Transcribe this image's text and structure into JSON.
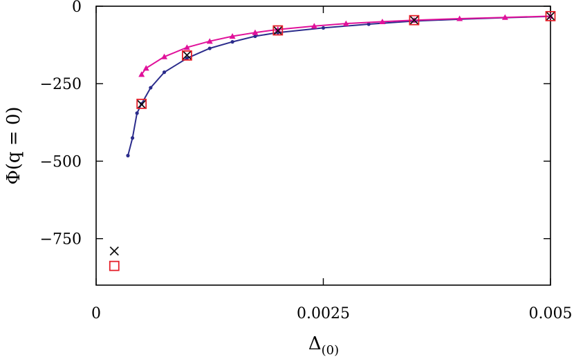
{
  "chart_data": {
    "type": "line",
    "xlabel": "Δ(0)",
    "ylabel": "Φ(q = 0)",
    "xlim": [
      0,
      0.005
    ],
    "ylim": [
      -900,
      0
    ],
    "grid": false,
    "x_ticks": [
      0,
      0.0025,
      0.005
    ],
    "x_tick_labels": [
      "0",
      "0.0025",
      "0.005"
    ],
    "y_ticks": [
      0,
      -250,
      -500,
      -750
    ],
    "y_tick_labels": [
      "0",
      "−250",
      "−500",
      "−750"
    ],
    "series": [
      {
        "color": "#2b2c8c",
        "marker": "circle",
        "line": true,
        "points": [
          [
            0.00035,
            -482
          ],
          [
            0.0004,
            -425
          ],
          [
            0.00045,
            -345
          ],
          [
            0.0005,
            -315
          ],
          [
            0.0006,
            -263
          ],
          [
            0.00075,
            -213
          ],
          [
            0.001,
            -168
          ],
          [
            0.00125,
            -136
          ],
          [
            0.0015,
            -115
          ],
          [
            0.00175,
            -97
          ],
          [
            0.002,
            -85
          ],
          [
            0.0025,
            -70
          ],
          [
            0.003,
            -58
          ],
          [
            0.0035,
            -48
          ],
          [
            0.004,
            -42
          ],
          [
            0.0045,
            -37
          ],
          [
            0.005,
            -33
          ]
        ]
      },
      {
        "color": "#e0119a",
        "marker": "triangle",
        "line": true,
        "points": [
          [
            0.0005,
            -220
          ],
          [
            0.00055,
            -200
          ],
          [
            0.00075,
            -163
          ],
          [
            0.001,
            -133
          ],
          [
            0.00125,
            -113
          ],
          [
            0.0015,
            -97
          ],
          [
            0.00175,
            -85
          ],
          [
            0.002,
            -75
          ],
          [
            0.0024,
            -64
          ],
          [
            0.00275,
            -56
          ],
          [
            0.00315,
            -50
          ],
          [
            0.0035,
            -45
          ],
          [
            0.004,
            -40
          ],
          [
            0.0045,
            -36
          ],
          [
            0.005,
            -32
          ]
        ]
      },
      {
        "color": "#111111",
        "marker": "cross",
        "line": false,
        "points": [
          [
            0.0002,
            -790
          ],
          [
            0.0005,
            -317
          ],
          [
            0.001,
            -158
          ],
          [
            0.002,
            -79
          ],
          [
            0.0035,
            -45
          ],
          [
            0.005,
            -32
          ]
        ]
      },
      {
        "color": "#e5202a",
        "marker": "square",
        "line": false,
        "points": [
          [
            0.0002,
            -838
          ],
          [
            0.0005,
            -315
          ],
          [
            0.001,
            -159
          ],
          [
            0.002,
            -78
          ],
          [
            0.0035,
            -45
          ],
          [
            0.005,
            -32
          ]
        ]
      }
    ]
  }
}
